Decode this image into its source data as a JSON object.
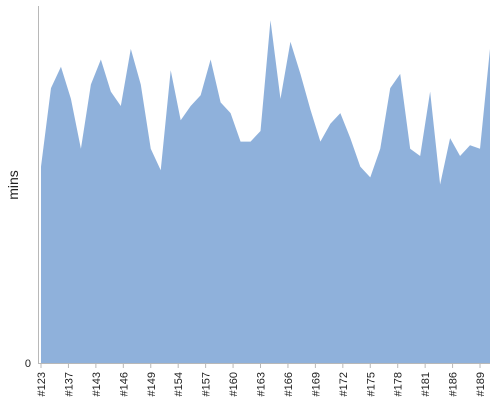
{
  "chart_data": {
    "type": "area",
    "title": "",
    "xlabel": "",
    "ylabel": "mins",
    "ylim": [
      0,
      100
    ],
    "grid": false,
    "legend": "none",
    "color": "#8fb1db",
    "y_tick_labels": [
      {
        "value": 0,
        "label": "0"
      }
    ],
    "x_tick_labels": [
      "#123",
      "#137",
      "#143",
      "#146",
      "#149",
      "#154",
      "#157",
      "#160",
      "#163",
      "#166",
      "#169",
      "#172",
      "#175",
      "#178",
      "#181",
      "#186",
      "#189"
    ],
    "x_tick_positions": [
      0,
      5.5,
      11,
      16.5,
      22,
      27.5,
      33,
      38.5,
      44,
      49.5,
      55,
      60.5,
      66,
      71.5,
      77,
      82.5,
      88
    ],
    "index": [
      0,
      2,
      4,
      6,
      8,
      10,
      12,
      14,
      16,
      18,
      20,
      22,
      24,
      26,
      28,
      30,
      32,
      34,
      36,
      38,
      40,
      42,
      44,
      46,
      48,
      50,
      52,
      54,
      56,
      58,
      60,
      62,
      64,
      66,
      68,
      70,
      72,
      74,
      76,
      78,
      80,
      82,
      84,
      86,
      88,
      90
    ],
    "values": [
      55,
      77,
      83,
      74,
      60,
      78,
      85,
      76,
      72,
      88,
      78,
      60,
      54,
      82,
      68,
      72,
      75,
      85,
      73,
      70,
      62,
      62,
      65,
      96,
      74,
      90,
      81,
      71,
      62,
      67,
      70,
      63,
      55,
      52,
      60,
      77,
      81,
      60,
      58,
      76,
      50,
      63,
      58,
      61,
      60,
      88
    ]
  }
}
